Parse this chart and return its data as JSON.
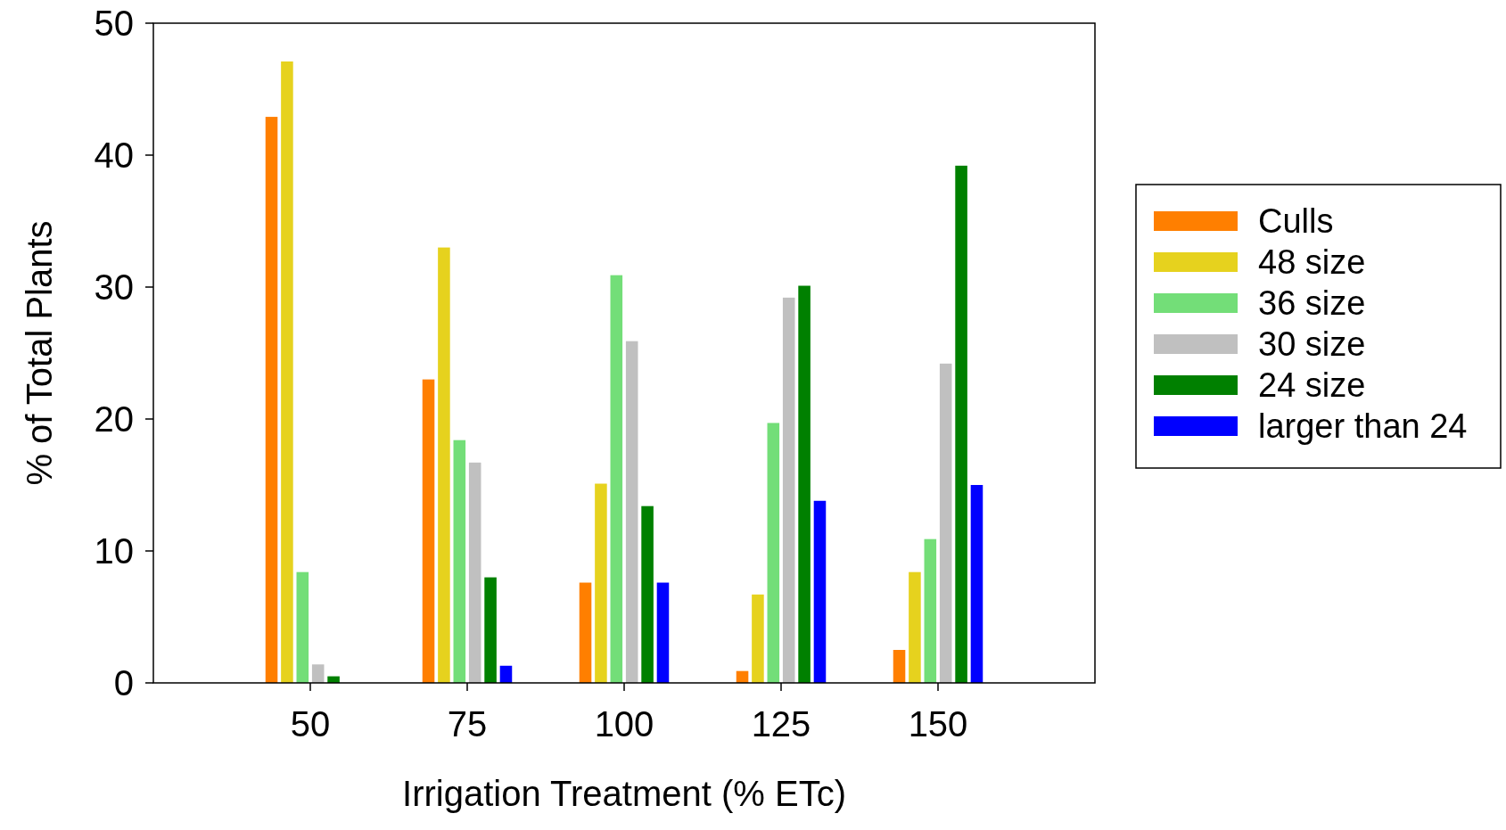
{
  "chart_data": {
    "type": "bar",
    "xlabel": "Irrigation Treatment (% ETc)",
    "ylabel": "% of Total Plants",
    "x": [
      50,
      75,
      100,
      125,
      150
    ],
    "xlim": [
      25,
      175
    ],
    "xticks": [
      50,
      75,
      100,
      125,
      150
    ],
    "ylim": [
      0,
      50
    ],
    "yticks": [
      0,
      10,
      20,
      30,
      40,
      50
    ],
    "legend": "right",
    "series": [
      {
        "name": "Culls",
        "color": "#ff7f00",
        "values": [
          42.9,
          23.0,
          7.6,
          0.9,
          2.5
        ]
      },
      {
        "name": "48 size",
        "color": "#e6d21e",
        "values": [
          47.1,
          33.0,
          15.1,
          6.7,
          8.4
        ]
      },
      {
        "name": "36 size",
        "color": "#73de78",
        "values": [
          8.4,
          18.4,
          30.9,
          19.7,
          10.9
        ]
      },
      {
        "name": "30 size",
        "color": "#c0c0c0",
        "values": [
          1.4,
          16.7,
          25.9,
          29.2,
          24.2
        ]
      },
      {
        "name": "24 size",
        "color": "#008000",
        "values": [
          0.5,
          8.0,
          13.4,
          30.1,
          39.2
        ]
      },
      {
        "name": "larger than 24",
        "color": "#0000ff",
        "values": [
          null,
          1.3,
          7.6,
          13.8,
          15.0
        ]
      }
    ]
  }
}
